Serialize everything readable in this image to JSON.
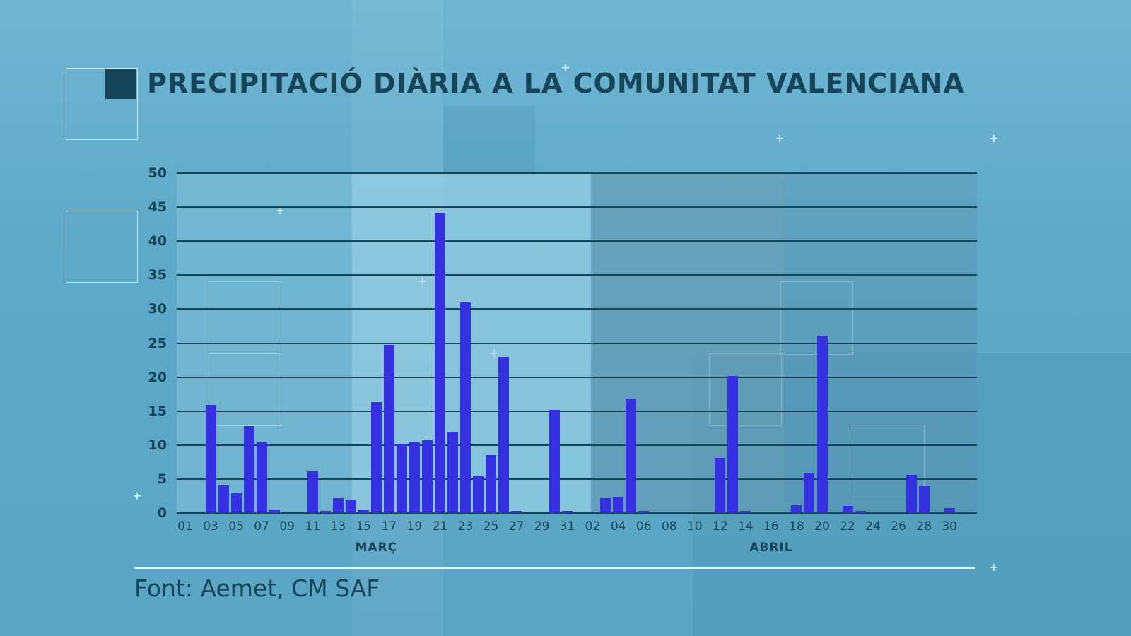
{
  "title": "PRECIPITACIÓ DIÀRIA A LA COMUNITAT VALENCIANA",
  "source": "Font: Aemet, CM SAF",
  "colors": {
    "bar": "#3530e0",
    "text": "#164559",
    "gridline": "#164559"
  },
  "y_ticks": [
    "0",
    "5",
    "10",
    "15",
    "20",
    "25",
    "30",
    "35",
    "40",
    "45",
    "50"
  ],
  "x_ticks": [
    "01",
    "03",
    "05",
    "07",
    "09",
    "11",
    "13",
    "15",
    "17",
    "19",
    "21",
    "23",
    "25",
    "27",
    "29",
    "31",
    "02",
    "04",
    "06",
    "08",
    "10",
    "12",
    "14",
    "16",
    "18",
    "20",
    "22",
    "24",
    "26",
    "28",
    "30"
  ],
  "months": [
    "MARÇ",
    "ABRIL"
  ],
  "chart_data": {
    "type": "bar",
    "title": "PRECIPITACIÓ DIÀRIA A LA COMUNITAT VALENCIANA",
    "xlabel": "",
    "ylabel": "",
    "ylim": [
      0,
      50
    ],
    "grid": true,
    "source": "Font: Aemet, CM SAF",
    "categories": [
      "01/03",
      "02/03",
      "03/03",
      "04/03",
      "05/03",
      "06/03",
      "07/03",
      "08/03",
      "09/03",
      "10/03",
      "11/03",
      "12/03",
      "13/03",
      "14/03",
      "15/03",
      "16/03",
      "17/03",
      "18/03",
      "19/03",
      "20/03",
      "21/03",
      "22/03",
      "23/03",
      "24/03",
      "25/03",
      "26/03",
      "27/03",
      "28/03",
      "29/03",
      "30/03",
      "31/03",
      "01/04",
      "02/04",
      "03/04",
      "04/04",
      "05/04",
      "06/04",
      "07/04",
      "08/04",
      "09/04",
      "10/04",
      "11/04",
      "12/04",
      "13/04",
      "14/04",
      "15/04",
      "16/04",
      "17/04",
      "18/04",
      "19/04",
      "20/04",
      "21/04",
      "22/04",
      "23/04",
      "24/04",
      "25/04",
      "26/04",
      "27/04",
      "28/04",
      "29/04",
      "30/04"
    ],
    "values": [
      0,
      0,
      15.9,
      4.1,
      2.9,
      12.8,
      10.4,
      0.5,
      0,
      0,
      6.1,
      0.3,
      2.2,
      1.9,
      0.5,
      16.3,
      24.7,
      10.2,
      10.4,
      10.7,
      44.2,
      11.8,
      31.0,
      5.4,
      8.5,
      23.0,
      0.3,
      0,
      0,
      15.2,
      0.3,
      0,
      0,
      2.2,
      2.3,
      16.8,
      0.3,
      0,
      0,
      0,
      0,
      0,
      8.1,
      20.2,
      0.3,
      0,
      0,
      0,
      1.1,
      5.9,
      26.1,
      0,
      1.0,
      0.3,
      0,
      0,
      0,
      5.6,
      4.0,
      0,
      0.7
    ],
    "month_labels": [
      {
        "label": "MARÇ",
        "center_day_index": 15
      },
      {
        "label": "ABRIL",
        "center_day_index": 46
      }
    ]
  }
}
